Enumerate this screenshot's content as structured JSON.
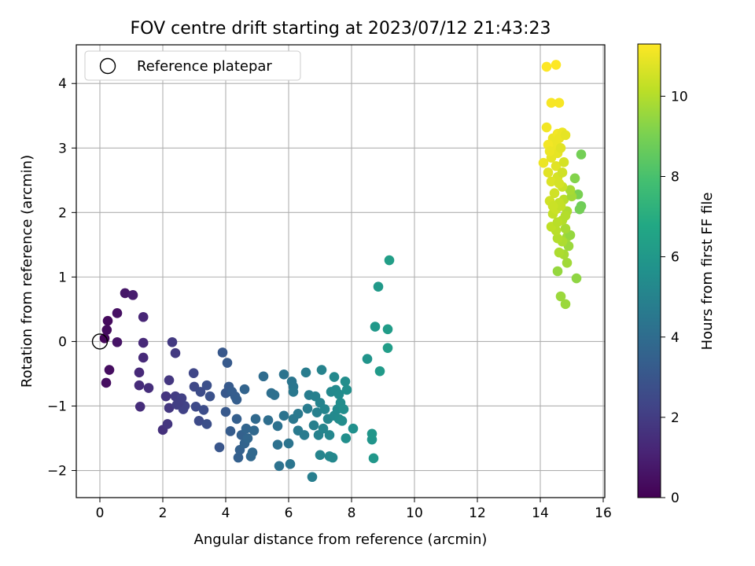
{
  "chart_data": {
    "type": "scatter",
    "title": "FOV centre drift starting at 2023/07/12 21:43:23",
    "xlabel": "Angular distance from reference (arcmin)",
    "ylabel": "Rotation from reference (arcmin)",
    "xlim": [
      -0.75,
      16.05
    ],
    "ylim": [
      -2.42,
      4.6
    ],
    "xticks": [
      "0",
      "2",
      "4",
      "6",
      "8",
      "10",
      "12",
      "14",
      "16"
    ],
    "yticks": [
      "−2",
      "−1",
      "0",
      "1",
      "2",
      "3",
      "4"
    ],
    "grid": true,
    "colorbar": {
      "label": "Hours from first FF file",
      "range": [
        0,
        11.3
      ],
      "ticks": [
        "0",
        "2",
        "4",
        "6",
        "8",
        "10"
      ],
      "colormap": "viridis"
    },
    "legend": {
      "position": "upper-left",
      "entries": [
        {
          "label": "Reference platepar",
          "marker": "open-circle"
        }
      ]
    },
    "reference_point": {
      "x": 0,
      "y": 0
    },
    "series": [
      {
        "points": [
          {
            "x": 0.15,
            "y": 0.05,
            "t": 0.2
          },
          {
            "x": 0.25,
            "y": 0.32,
            "t": 0.3
          },
          {
            "x": 0.22,
            "y": 0.18,
            "t": 0.35
          },
          {
            "x": 0.3,
            "y": -0.44,
            "t": 0.4
          },
          {
            "x": 0.2,
            "y": -0.64,
            "t": 0.45
          },
          {
            "x": 0.55,
            "y": 0.44,
            "t": 0.5
          },
          {
            "x": 0.55,
            "y": -0.01,
            "t": 0.6
          },
          {
            "x": 0.8,
            "y": 0.75,
            "t": 0.7
          },
          {
            "x": 1.05,
            "y": 0.72,
            "t": 0.9
          },
          {
            "x": 1.38,
            "y": 0.38,
            "t": 1.2
          },
          {
            "x": 1.38,
            "y": -0.02,
            "t": 1.3
          },
          {
            "x": 1.38,
            "y": -0.25,
            "t": 1.35
          },
          {
            "x": 1.25,
            "y": -0.48,
            "t": 1.3
          },
          {
            "x": 1.25,
            "y": -0.68,
            "t": 1.4
          },
          {
            "x": 1.28,
            "y": -1.01,
            "t": 1.45
          },
          {
            "x": 1.55,
            "y": -0.72,
            "t": 1.5
          },
          {
            "x": 2.0,
            "y": -1.37,
            "t": 1.6
          },
          {
            "x": 2.1,
            "y": -0.85,
            "t": 1.7
          },
          {
            "x": 2.15,
            "y": -1.28,
            "t": 1.75
          },
          {
            "x": 2.2,
            "y": -1.03,
            "t": 1.8
          },
          {
            "x": 2.2,
            "y": -0.6,
            "t": 1.8
          },
          {
            "x": 2.3,
            "y": -0.01,
            "t": 1.9
          },
          {
            "x": 2.4,
            "y": -0.18,
            "t": 1.9
          },
          {
            "x": 2.4,
            "y": -0.85,
            "t": 2.0
          },
          {
            "x": 2.45,
            "y": -0.98,
            "t": 2.05
          },
          {
            "x": 2.55,
            "y": -0.92,
            "t": 2.1
          },
          {
            "x": 2.6,
            "y": -0.88,
            "t": 2.15
          },
          {
            "x": 2.65,
            "y": -1.05,
            "t": 2.2
          },
          {
            "x": 2.7,
            "y": -1.0,
            "t": 2.2
          },
          {
            "x": 2.5,
            "y": -0.95,
            "t": 2.1
          },
          {
            "x": 2.98,
            "y": -0.49,
            "t": 2.4
          },
          {
            "x": 3.0,
            "y": -0.7,
            "t": 2.45
          },
          {
            "x": 3.05,
            "y": -1.01,
            "t": 2.5
          },
          {
            "x": 3.15,
            "y": -1.23,
            "t": 2.55
          },
          {
            "x": 3.2,
            "y": -0.78,
            "t": 2.6
          },
          {
            "x": 3.3,
            "y": -1.06,
            "t": 2.65
          },
          {
            "x": 3.4,
            "y": -1.28,
            "t": 2.7
          },
          {
            "x": 3.4,
            "y": -0.68,
            "t": 2.75
          },
          {
            "x": 3.5,
            "y": -0.85,
            "t": 2.8
          },
          {
            "x": 3.8,
            "y": -1.64,
            "t": 3.0
          },
          {
            "x": 3.9,
            "y": -0.17,
            "t": 3.1
          },
          {
            "x": 4.0,
            "y": -0.8,
            "t": 3.1
          },
          {
            "x": 4.0,
            "y": -1.09,
            "t": 3.15
          },
          {
            "x": 4.05,
            "y": -0.33,
            "t": 3.2
          },
          {
            "x": 4.1,
            "y": -0.7,
            "t": 3.2
          },
          {
            "x": 4.15,
            "y": -1.39,
            "t": 3.25
          },
          {
            "x": 4.2,
            "y": -0.78,
            "t": 3.3
          },
          {
            "x": 4.3,
            "y": -0.85,
            "t": 3.3
          },
          {
            "x": 4.35,
            "y": -0.9,
            "t": 3.35
          },
          {
            "x": 4.35,
            "y": -1.2,
            "t": 3.4
          },
          {
            "x": 4.4,
            "y": -1.8,
            "t": 3.45
          },
          {
            "x": 4.45,
            "y": -1.68,
            "t": 3.5
          },
          {
            "x": 4.5,
            "y": -1.45,
            "t": 3.5
          },
          {
            "x": 4.6,
            "y": -1.58,
            "t": 3.55
          },
          {
            "x": 4.6,
            "y": -0.74,
            "t": 3.6
          },
          {
            "x": 4.65,
            "y": -1.35,
            "t": 3.65
          },
          {
            "x": 4.7,
            "y": -1.5,
            "t": 3.7
          },
          {
            "x": 4.8,
            "y": -1.78,
            "t": 3.75
          },
          {
            "x": 4.85,
            "y": -1.72,
            "t": 3.8
          },
          {
            "x": 4.9,
            "y": -1.38,
            "t": 3.8
          },
          {
            "x": 4.95,
            "y": -1.2,
            "t": 3.85
          },
          {
            "x": 5.2,
            "y": -0.54,
            "t": 4.0
          },
          {
            "x": 5.35,
            "y": -1.22,
            "t": 4.05
          },
          {
            "x": 5.45,
            "y": -0.8,
            "t": 4.1
          },
          {
            "x": 5.55,
            "y": -0.83,
            "t": 4.15
          },
          {
            "x": 5.65,
            "y": -1.31,
            "t": 4.2
          },
          {
            "x": 5.65,
            "y": -1.6,
            "t": 4.2
          },
          {
            "x": 5.7,
            "y": -1.93,
            "t": 4.25
          },
          {
            "x": 5.85,
            "y": -0.51,
            "t": 4.3
          },
          {
            "x": 5.85,
            "y": -1.15,
            "t": 4.3
          },
          {
            "x": 6.0,
            "y": -1.58,
            "t": 4.35
          },
          {
            "x": 6.05,
            "y": -1.9,
            "t": 4.4
          },
          {
            "x": 6.1,
            "y": -0.62,
            "t": 4.4
          },
          {
            "x": 6.15,
            "y": -0.7,
            "t": 4.45
          },
          {
            "x": 6.15,
            "y": -0.78,
            "t": 4.5
          },
          {
            "x": 6.15,
            "y": -1.2,
            "t": 4.5
          },
          {
            "x": 6.3,
            "y": -1.12,
            "t": 4.55
          },
          {
            "x": 6.3,
            "y": -1.38,
            "t": 4.6
          },
          {
            "x": 6.5,
            "y": -1.45,
            "t": 4.65
          },
          {
            "x": 6.55,
            "y": -0.48,
            "t": 4.7
          },
          {
            "x": 6.6,
            "y": -1.04,
            "t": 4.7
          },
          {
            "x": 6.65,
            "y": -0.83,
            "t": 4.75
          },
          {
            "x": 6.75,
            "y": -2.1,
            "t": 4.8
          },
          {
            "x": 6.8,
            "y": -1.3,
            "t": 4.85
          },
          {
            "x": 6.85,
            "y": -0.85,
            "t": 4.9
          },
          {
            "x": 6.9,
            "y": -1.1,
            "t": 4.9
          },
          {
            "x": 6.95,
            "y": -1.45,
            "t": 4.95
          },
          {
            "x": 7.0,
            "y": -0.95,
            "t": 5.0
          },
          {
            "x": 7.05,
            "y": -0.44,
            "t": 5.0
          },
          {
            "x": 7.0,
            "y": -1.76,
            "t": 5.05
          },
          {
            "x": 7.1,
            "y": -1.35,
            "t": 5.1
          },
          {
            "x": 7.15,
            "y": -1.05,
            "t": 5.1
          },
          {
            "x": 7.25,
            "y": -1.2,
            "t": 5.15
          },
          {
            "x": 7.3,
            "y": -1.78,
            "t": 5.2
          },
          {
            "x": 7.3,
            "y": -1.45,
            "t": 5.2
          },
          {
            "x": 7.4,
            "y": -1.8,
            "t": 5.25
          },
          {
            "x": 7.35,
            "y": -0.78,
            "t": 5.25
          },
          {
            "x": 7.45,
            "y": -0.55,
            "t": 5.3
          },
          {
            "x": 7.45,
            "y": -1.15,
            "t": 5.3
          },
          {
            "x": 7.5,
            "y": -0.75,
            "t": 5.35
          },
          {
            "x": 7.55,
            "y": -1.05,
            "t": 5.35
          },
          {
            "x": 7.6,
            "y": -0.82,
            "t": 5.4
          },
          {
            "x": 7.6,
            "y": -1.2,
            "t": 5.4
          },
          {
            "x": 7.65,
            "y": -0.95,
            "t": 5.45
          },
          {
            "x": 7.7,
            "y": -1.23,
            "t": 5.45
          },
          {
            "x": 7.75,
            "y": -1.05,
            "t": 5.5
          },
          {
            "x": 7.8,
            "y": -0.62,
            "t": 5.5
          },
          {
            "x": 7.82,
            "y": -1.5,
            "t": 5.55
          },
          {
            "x": 7.85,
            "y": -0.75,
            "t": 5.55
          },
          {
            "x": 8.05,
            "y": -1.35,
            "t": 5.6
          },
          {
            "x": 8.5,
            "y": -0.27,
            "t": 5.8
          },
          {
            "x": 8.65,
            "y": -1.52,
            "t": 5.85
          },
          {
            "x": 8.65,
            "y": -1.43,
            "t": 5.9
          },
          {
            "x": 8.7,
            "y": -1.81,
            "t": 5.95
          },
          {
            "x": 8.75,
            "y": 0.23,
            "t": 6.0
          },
          {
            "x": 8.85,
            "y": 0.85,
            "t": 6.05
          },
          {
            "x": 8.9,
            "y": -0.46,
            "t": 6.1
          },
          {
            "x": 9.15,
            "y": 0.19,
            "t": 6.2
          },
          {
            "x": 9.15,
            "y": -0.1,
            "t": 6.25
          },
          {
            "x": 9.2,
            "y": 1.26,
            "t": 6.3
          },
          {
            "x": 14.55,
            "y": 1.09,
            "t": 9.5
          },
          {
            "x": 14.65,
            "y": 0.7,
            "t": 9.6
          },
          {
            "x": 14.8,
            "y": 0.58,
            "t": 9.6
          },
          {
            "x": 15.15,
            "y": 0.98,
            "t": 9.4
          },
          {
            "x": 15.3,
            "y": 2.9,
            "t": 8.9
          },
          {
            "x": 15.3,
            "y": 2.1,
            "t": 8.8
          },
          {
            "x": 15.25,
            "y": 2.05,
            "t": 8.9
          },
          {
            "x": 15.2,
            "y": 2.28,
            "t": 9.0
          },
          {
            "x": 15.1,
            "y": 2.53,
            "t": 9.2
          },
          {
            "x": 14.85,
            "y": 1.22,
            "t": 9.7
          },
          {
            "x": 14.75,
            "y": 1.35,
            "t": 9.8
          },
          {
            "x": 14.6,
            "y": 1.38,
            "t": 9.9
          },
          {
            "x": 14.9,
            "y": 1.48,
            "t": 9.6
          },
          {
            "x": 14.85,
            "y": 1.62,
            "t": 9.7
          },
          {
            "x": 14.95,
            "y": 1.65,
            "t": 9.5
          },
          {
            "x": 14.7,
            "y": 1.55,
            "t": 9.9
          },
          {
            "x": 14.55,
            "y": 1.6,
            "t": 10.0
          },
          {
            "x": 14.8,
            "y": 1.75,
            "t": 9.8
          },
          {
            "x": 14.5,
            "y": 1.72,
            "t": 10.1
          },
          {
            "x": 14.35,
            "y": 1.78,
            "t": 10.2
          },
          {
            "x": 14.4,
            "y": 1.98,
            "t": 10.3
          },
          {
            "x": 14.7,
            "y": 1.88,
            "t": 10.0
          },
          {
            "x": 14.85,
            "y": 2.02,
            "t": 9.9
          },
          {
            "x": 14.75,
            "y": 2.2,
            "t": 10.1
          },
          {
            "x": 15.0,
            "y": 2.25,
            "t": 9.7
          },
          {
            "x": 14.95,
            "y": 2.35,
            "t": 9.8
          },
          {
            "x": 14.6,
            "y": 2.15,
            "t": 10.3
          },
          {
            "x": 14.5,
            "y": 2.05,
            "t": 10.4
          },
          {
            "x": 14.3,
            "y": 2.18,
            "t": 10.5
          },
          {
            "x": 14.45,
            "y": 2.3,
            "t": 10.5
          },
          {
            "x": 14.7,
            "y": 2.4,
            "t": 10.4
          },
          {
            "x": 14.55,
            "y": 2.55,
            "t": 10.6
          },
          {
            "x": 14.35,
            "y": 2.48,
            "t": 10.7
          },
          {
            "x": 14.25,
            "y": 2.62,
            "t": 10.8
          },
          {
            "x": 14.5,
            "y": 2.72,
            "t": 10.8
          },
          {
            "x": 14.7,
            "y": 2.62,
            "t": 10.5
          },
          {
            "x": 14.35,
            "y": 2.85,
            "t": 10.9
          },
          {
            "x": 14.55,
            "y": 2.92,
            "t": 10.9
          },
          {
            "x": 14.75,
            "y": 2.78,
            "t": 10.6
          },
          {
            "x": 14.1,
            "y": 2.77,
            "t": 11.0
          },
          {
            "x": 14.5,
            "y": 3.05,
            "t": 11.0
          },
          {
            "x": 14.65,
            "y": 3.0,
            "t": 10.8
          },
          {
            "x": 14.4,
            "y": 3.15,
            "t": 11.0
          },
          {
            "x": 14.2,
            "y": 3.32,
            "t": 11.1
          },
          {
            "x": 14.55,
            "y": 3.22,
            "t": 11.1
          },
          {
            "x": 14.6,
            "y": 3.15,
            "t": 11.0
          },
          {
            "x": 14.7,
            "y": 3.24,
            "t": 11.0
          },
          {
            "x": 14.8,
            "y": 3.2,
            "t": 10.9
          },
          {
            "x": 14.25,
            "y": 3.05,
            "t": 11.1
          },
          {
            "x": 14.35,
            "y": 3.7,
            "t": 11.2
          },
          {
            "x": 14.6,
            "y": 3.7,
            "t": 11.2
          },
          {
            "x": 14.2,
            "y": 4.26,
            "t": 11.3
          },
          {
            "x": 14.5,
            "y": 4.29,
            "t": 11.3
          },
          {
            "x": 14.3,
            "y": 2.95,
            "t": 11.0
          },
          {
            "x": 14.6,
            "y": 2.45,
            "t": 10.6
          },
          {
            "x": 14.65,
            "y": 2.1,
            "t": 10.3
          },
          {
            "x": 14.4,
            "y": 2.1,
            "t": 10.4
          },
          {
            "x": 14.8,
            "y": 1.95,
            "t": 10.0
          },
          {
            "x": 14.55,
            "y": 1.85,
            "t": 10.1
          }
        ]
      }
    ]
  }
}
